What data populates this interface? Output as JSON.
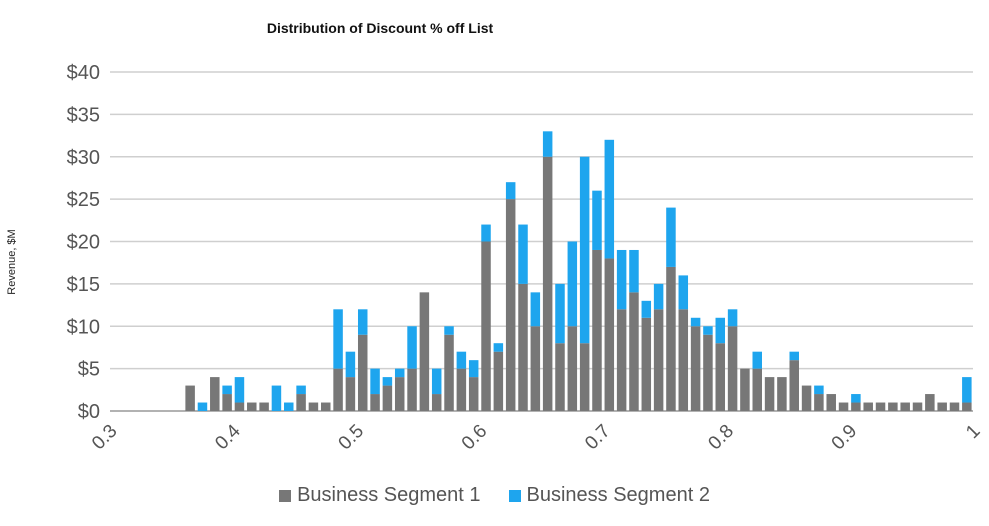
{
  "chart_data": {
    "type": "bar",
    "stacked": true,
    "title": "Distribution of Discount % off List",
    "ylabel": "Revenue, $M",
    "xlabel": "",
    "xlim": [
      0.3,
      1.0
    ],
    "ylim": [
      0,
      40
    ],
    "x_ticks": [
      "0.3",
      "0.4",
      "0.5",
      "0.6",
      "0.7",
      "0.8",
      "0.9",
      "1"
    ],
    "y_ticks": [
      "$0",
      "$5",
      "$10",
      "$15",
      "$20",
      "$25",
      "$30",
      "$35",
      "$40"
    ],
    "grid": "horizontal",
    "legend_position": "bottom",
    "colors": {
      "segment1": "#777777",
      "segment2": "#1ea5ee"
    },
    "x": [
      0.365,
      0.375,
      0.385,
      0.395,
      0.405,
      0.415,
      0.425,
      0.435,
      0.445,
      0.455,
      0.465,
      0.475,
      0.485,
      0.495,
      0.505,
      0.515,
      0.525,
      0.535,
      0.545,
      0.555,
      0.565,
      0.575,
      0.585,
      0.595,
      0.605,
      0.615,
      0.625,
      0.635,
      0.645,
      0.655,
      0.665,
      0.675,
      0.685,
      0.695,
      0.705,
      0.715,
      0.725,
      0.735,
      0.745,
      0.755,
      0.765,
      0.775,
      0.785,
      0.795,
      0.805,
      0.815,
      0.825,
      0.835,
      0.845,
      0.855,
      0.865,
      0.875,
      0.885,
      0.895,
      0.905,
      0.915,
      0.925,
      0.935,
      0.945,
      0.955,
      0.965,
      0.975,
      0.985,
      0.995
    ],
    "series": [
      {
        "name": "Business Segment 1",
        "values": [
          3,
          0,
          4,
          2,
          1,
          1,
          1,
          0,
          0,
          2,
          1,
          1,
          5,
          4,
          9,
          2,
          3,
          4,
          5,
          14,
          2,
          9,
          5,
          4,
          20,
          7,
          25,
          15,
          10,
          30,
          8,
          10,
          8,
          19,
          18,
          12,
          14,
          11,
          12,
          17,
          12,
          10,
          9,
          8,
          10,
          5,
          5,
          4,
          4,
          6,
          3,
          2,
          2,
          1,
          1,
          1,
          1,
          1,
          1,
          1,
          2,
          1,
          1,
          1
        ]
      },
      {
        "name": "Business Segment 2",
        "values": [
          0,
          1,
          0,
          1,
          3,
          0,
          0,
          3,
          1,
          1,
          0,
          0,
          7,
          3,
          3,
          3,
          1,
          1,
          5,
          0,
          3,
          1,
          2,
          2,
          2,
          1,
          2,
          7,
          4,
          3,
          7,
          10,
          22,
          7,
          14,
          7,
          5,
          2,
          3,
          7,
          4,
          1,
          1,
          3,
          2,
          0,
          2,
          0,
          0,
          1,
          0,
          1,
          0,
          0,
          1,
          0,
          0,
          0,
          0,
          0,
          0,
          0,
          0,
          3
        ]
      }
    ]
  }
}
